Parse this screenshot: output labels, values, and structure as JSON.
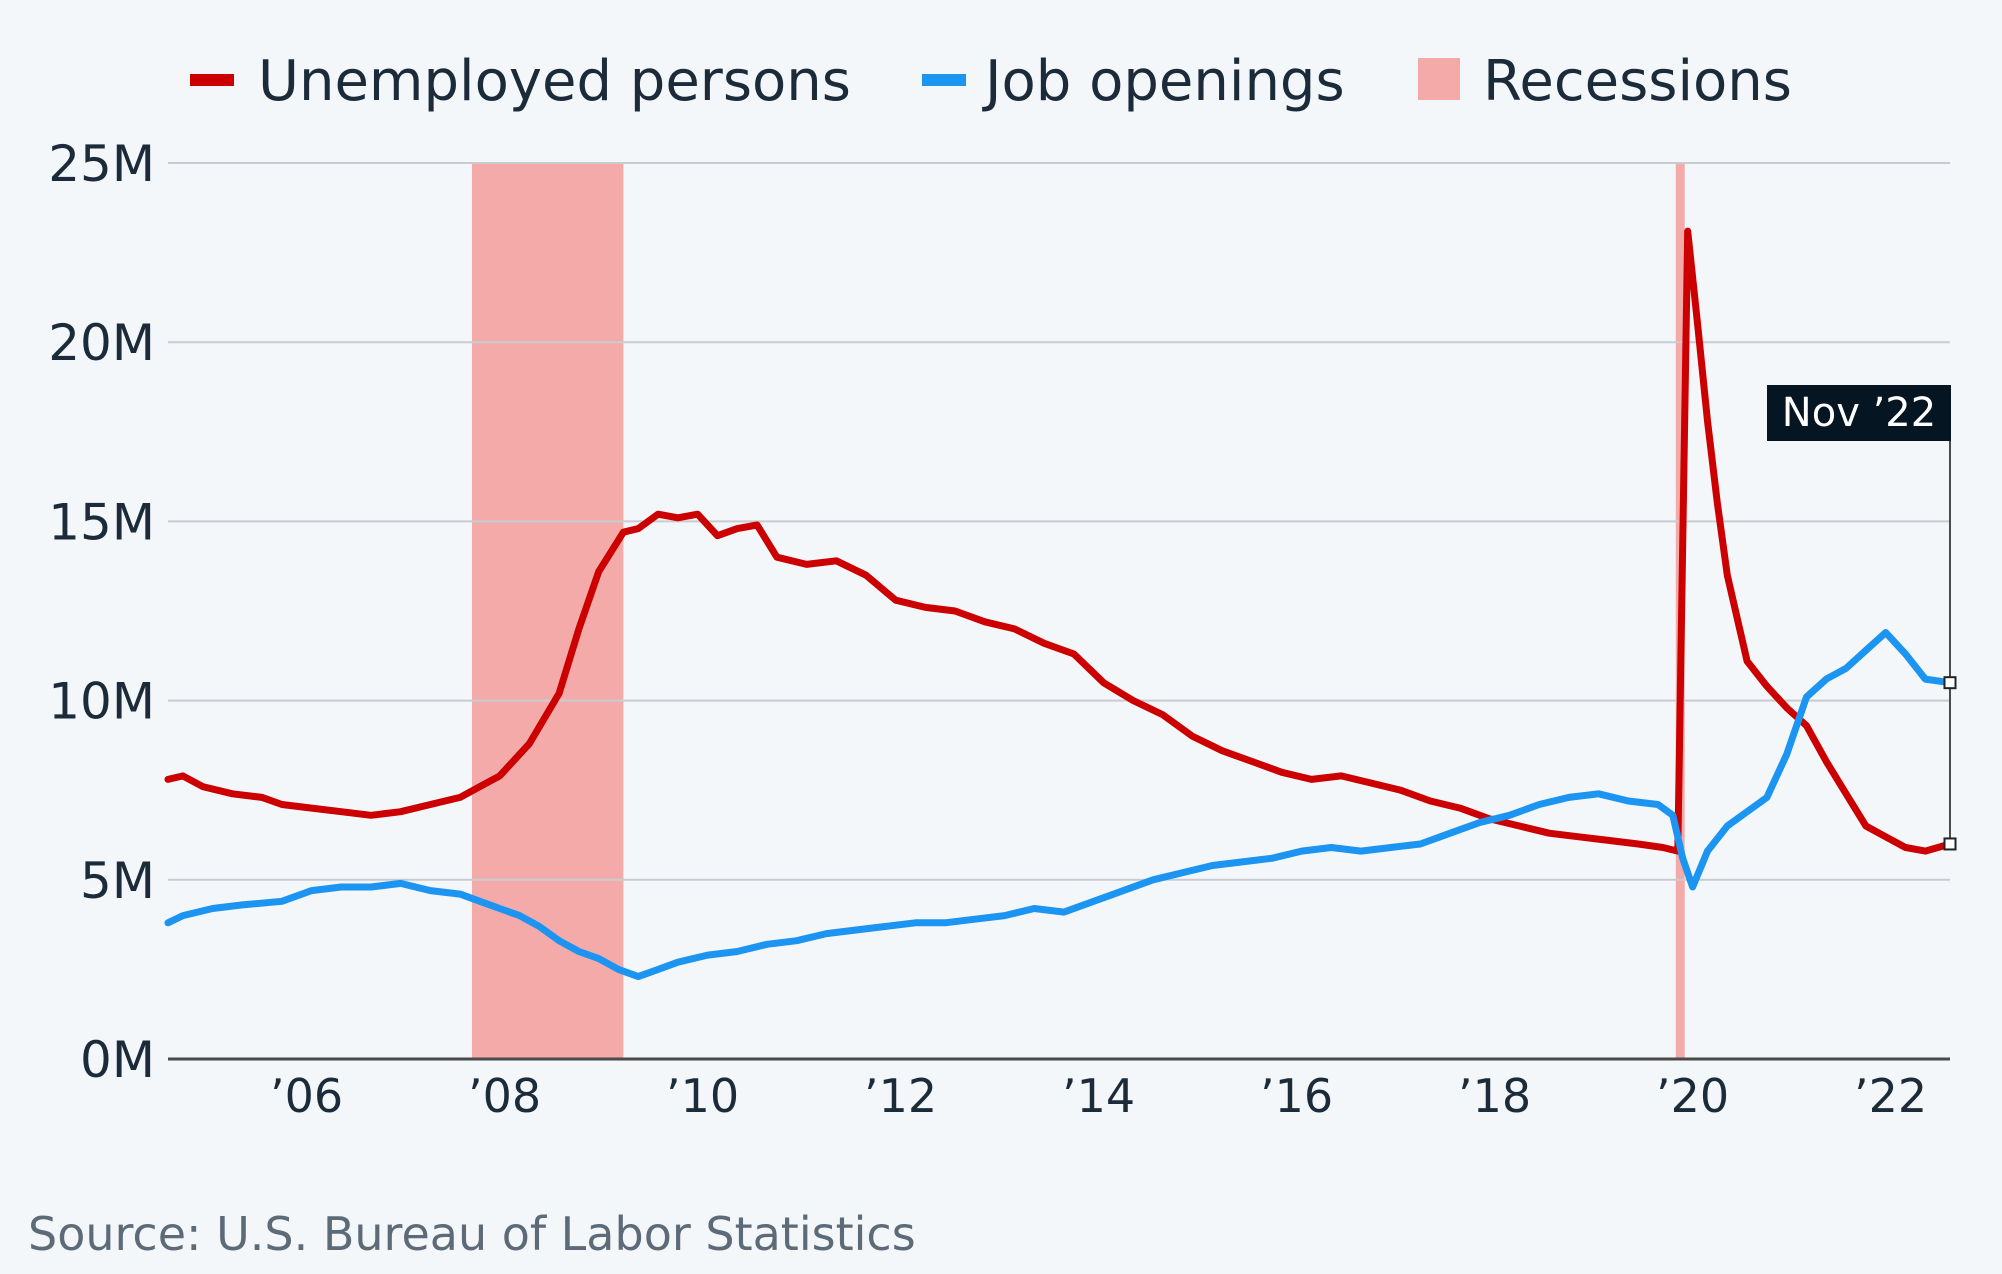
{
  "colors": {
    "unemployed": "#cc0000",
    "openings": "#1b94f2",
    "recession": "#f5aaaa",
    "grid": "#c8ccd1",
    "axis": "#4a4a4a",
    "tooltip_bg": "#051521",
    "background": "#f4f7fa"
  },
  "legend": {
    "unemployed": "Unemployed persons",
    "openings": "Job openings",
    "recessions": "Recessions"
  },
  "source": "Source: U.S. Bureau of Labor Statistics",
  "tooltip": {
    "label": "Nov ’22"
  },
  "chart_data": {
    "type": "line",
    "x_range": [
      2004.85,
      2022.85
    ],
    "ylim": [
      0,
      25
    ],
    "y_unit": "M",
    "yticks": [
      {
        "value": 0,
        "label": "0M"
      },
      {
        "value": 5,
        "label": "5M"
      },
      {
        "value": 10,
        "label": "10M"
      },
      {
        "value": 15,
        "label": "15M"
      },
      {
        "value": 20,
        "label": "20M"
      },
      {
        "value": 25,
        "label": "25M"
      }
    ],
    "xticks": [
      {
        "value": 2006.25,
        "label": "’06"
      },
      {
        "value": 2008.25,
        "label": "’08"
      },
      {
        "value": 2010.25,
        "label": "’10"
      },
      {
        "value": 2012.25,
        "label": "’12"
      },
      {
        "value": 2014.25,
        "label": "’14"
      },
      {
        "value": 2016.25,
        "label": "’16"
      },
      {
        "value": 2018.25,
        "label": "’18"
      },
      {
        "value": 2020.25,
        "label": "’20"
      },
      {
        "value": 2022.25,
        "label": "’22"
      }
    ],
    "recessions": [
      {
        "start": 2007.92,
        "end": 2009.45
      },
      {
        "start": 2020.08,
        "end": 2020.17
      }
    ],
    "series": [
      {
        "name": "Unemployed persons",
        "color": "#cc0000",
        "x": [
          2004.85,
          2005.0,
          2005.2,
          2005.5,
          2005.8,
          2006.0,
          2006.3,
          2006.6,
          2006.9,
          2007.2,
          2007.5,
          2007.8,
          2008.0,
          2008.2,
          2008.5,
          2008.8,
          2009.0,
          2009.2,
          2009.45,
          2009.6,
          2009.8,
          2010.0,
          2010.2,
          2010.4,
          2010.6,
          2010.8,
          2011.0,
          2011.3,
          2011.6,
          2011.9,
          2012.2,
          2012.5,
          2012.8,
          2013.1,
          2013.4,
          2013.7,
          2014.0,
          2014.3,
          2014.6,
          2014.9,
          2015.2,
          2015.5,
          2015.8,
          2016.1,
          2016.4,
          2016.7,
          2017.0,
          2017.3,
          2017.6,
          2017.9,
          2018.2,
          2018.5,
          2018.8,
          2019.1,
          2019.4,
          2019.7,
          2019.95,
          2020.1,
          2020.2,
          2020.3,
          2020.4,
          2020.5,
          2020.6,
          2020.8,
          2021.0,
          2021.2,
          2021.4,
          2021.6,
          2021.8,
          2022.0,
          2022.2,
          2022.4,
          2022.6,
          2022.85
        ],
        "values": [
          7.8,
          7.9,
          7.6,
          7.4,
          7.3,
          7.1,
          7.0,
          6.9,
          6.8,
          6.9,
          7.1,
          7.3,
          7.6,
          7.9,
          8.8,
          10.2,
          12.0,
          13.6,
          14.7,
          14.8,
          15.2,
          15.1,
          15.2,
          14.6,
          14.8,
          14.9,
          14.0,
          13.8,
          13.9,
          13.5,
          12.8,
          12.6,
          12.5,
          12.2,
          12.0,
          11.6,
          11.3,
          10.5,
          10.0,
          9.6,
          9.0,
          8.6,
          8.3,
          8.0,
          7.8,
          7.9,
          7.7,
          7.5,
          7.2,
          7.0,
          6.7,
          6.5,
          6.3,
          6.2,
          6.1,
          6.0,
          5.9,
          5.8,
          23.1,
          20.5,
          17.8,
          15.5,
          13.5,
          11.1,
          10.4,
          9.8,
          9.3,
          8.3,
          7.4,
          6.5,
          6.2,
          5.9,
          5.8,
          6.0
        ]
      },
      {
        "name": "Job openings",
        "color": "#1b94f2",
        "x": [
          2004.85,
          2005.0,
          2005.3,
          2005.6,
          2006.0,
          2006.3,
          2006.6,
          2006.9,
          2007.2,
          2007.5,
          2007.8,
          2008.0,
          2008.2,
          2008.4,
          2008.6,
          2008.8,
          2009.0,
          2009.2,
          2009.4,
          2009.6,
          2009.8,
          2010.0,
          2010.3,
          2010.6,
          2010.9,
          2011.2,
          2011.5,
          2011.8,
          2012.1,
          2012.4,
          2012.7,
          2013.0,
          2013.3,
          2013.6,
          2013.9,
          2014.2,
          2014.5,
          2014.8,
          2015.1,
          2015.4,
          2015.7,
          2016.0,
          2016.3,
          2016.6,
          2016.9,
          2017.2,
          2017.5,
          2017.8,
          2018.1,
          2018.4,
          2018.7,
          2019.0,
          2019.3,
          2019.6,
          2019.9,
          2020.05,
          2020.15,
          2020.25,
          2020.4,
          2020.6,
          2020.8,
          2021.0,
          2021.2,
          2021.4,
          2021.6,
          2021.8,
          2022.0,
          2022.2,
          2022.4,
          2022.6,
          2022.85
        ],
        "values": [
          3.8,
          4.0,
          4.2,
          4.3,
          4.4,
          4.7,
          4.8,
          4.8,
          4.9,
          4.7,
          4.6,
          4.4,
          4.2,
          4.0,
          3.7,
          3.3,
          3.0,
          2.8,
          2.5,
          2.3,
          2.5,
          2.7,
          2.9,
          3.0,
          3.2,
          3.3,
          3.5,
          3.6,
          3.7,
          3.8,
          3.8,
          3.9,
          4.0,
          4.2,
          4.1,
          4.4,
          4.7,
          5.0,
          5.2,
          5.4,
          5.5,
          5.6,
          5.8,
          5.9,
          5.8,
          5.9,
          6.0,
          6.3,
          6.6,
          6.8,
          7.1,
          7.3,
          7.4,
          7.2,
          7.1,
          6.8,
          5.6,
          4.8,
          5.8,
          6.5,
          6.9,
          7.3,
          8.5,
          10.1,
          10.6,
          10.9,
          11.4,
          11.9,
          11.3,
          10.6,
          10.5
        ]
      }
    ]
  }
}
